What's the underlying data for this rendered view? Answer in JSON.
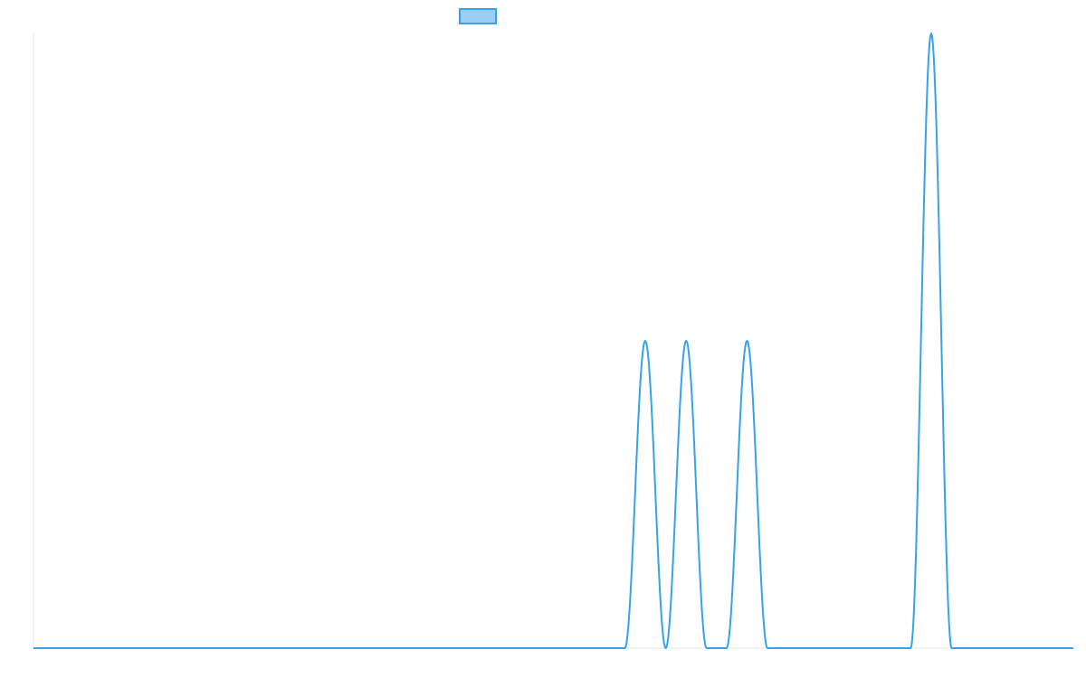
{
  "chart_data": {
    "type": "line",
    "title": "",
    "xlabel": "",
    "ylabel": "",
    "grid": false,
    "legend": {
      "placement": "top-center",
      "entries": [
        {
          "name": "",
          "color": "#36A2EB",
          "fill": "#9AD0F5"
        }
      ]
    },
    "xlim": [
      0,
      1000
    ],
    "ylim": [
      0,
      2
    ],
    "series": [
      {
        "name": "",
        "color": "#36A2EB",
        "points": [
          [
            0,
            0
          ],
          [
            568.7,
            0
          ],
          [
            588.3,
            1
          ],
          [
            608.0,
            0
          ],
          [
            627.7,
            1
          ],
          [
            647.3,
            0
          ],
          [
            666.5,
            0
          ],
          [
            686.2,
            1
          ],
          [
            705.9,
            0
          ],
          [
            843.6,
            0
          ],
          [
            863.3,
            2
          ],
          [
            883.0,
            0
          ],
          [
            1000,
            0
          ]
        ]
      }
    ]
  }
}
